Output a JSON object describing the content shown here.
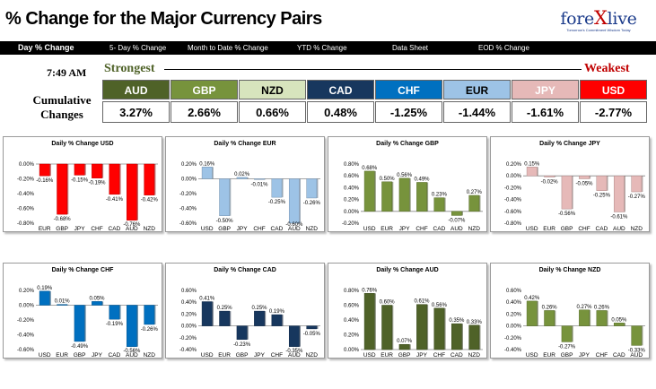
{
  "header": {
    "title": "% Change for the Major Currency Pairs",
    "logo": {
      "name_prefix": "fore",
      "name_x": "X",
      "name_suffix": "live",
      "tagline": "Tomorrow's Commitment Wisdom Today"
    }
  },
  "nav": {
    "tabs": [
      {
        "label": "Day % Change",
        "active": true
      },
      {
        "label": "5- Day % Change"
      },
      {
        "label": "Month to Date % Change"
      },
      {
        "label": "YTD % Change"
      },
      {
        "label": "Data Sheet"
      },
      {
        "label": "EOD % Change"
      }
    ]
  },
  "summary": {
    "time": "7:49 AM",
    "strongest_label": "Strongest",
    "weakest_label": "Weakest",
    "cumulative_label_1": "Cumulative",
    "cumulative_label_2": "Changes",
    "pairs": [
      {
        "code": "AUD",
        "value": "3.27%",
        "color": "#4f6228",
        "text_color": "#ffffff"
      },
      {
        "code": "GBP",
        "value": "2.66%",
        "color": "#77933c",
        "text_color": "#ffffff"
      },
      {
        "code": "NZD",
        "value": "0.66%",
        "color": "#d7e4bd",
        "text_color": "#000000"
      },
      {
        "code": "CAD",
        "value": "0.48%",
        "color": "#17375e",
        "text_color": "#ffffff"
      },
      {
        "code": "CHF",
        "value": "-1.25%",
        "color": "#0070c0",
        "text_color": "#ffffff"
      },
      {
        "code": "EUR",
        "value": "-1.44%",
        "color": "#9dc3e6",
        "text_color": "#000000"
      },
      {
        "code": "JPY",
        "value": "-1.61%",
        "color": "#e6b9b8",
        "text_color": "#ffffff"
      },
      {
        "code": "USD",
        "value": "-2.77%",
        "color": "#ff0000",
        "text_color": "#ffffff"
      }
    ]
  },
  "chart_data": [
    {
      "type": "bar",
      "title": "Daily % Change USD",
      "categories": [
        "EUR",
        "GBP",
        "JPY",
        "CHF",
        "CAD",
        "AUD",
        "NZD"
      ],
      "values": [
        -0.16,
        -0.68,
        -0.15,
        -0.19,
        -0.41,
        -0.76,
        -0.42
      ],
      "labels": [
        "-0.16%",
        "-0.68%",
        "-0.15%",
        "-0.19%",
        "-0.41%",
        "-0.76%",
        "-0.42%"
      ],
      "ylim": [
        -0.8,
        0.0
      ],
      "yticks": [
        0.0,
        -0.2,
        -0.4,
        -0.6,
        -0.8
      ],
      "ytick_labels": [
        "0.00%",
        "-0.20%",
        "-0.40%",
        "-0.60%",
        "-0.80%"
      ],
      "color": "#ff0000",
      "grid": false
    },
    {
      "type": "bar",
      "title": "Daily % Change EUR",
      "categories": [
        "USD",
        "GBP",
        "JPY",
        "CHF",
        "CAD",
        "AUD",
        "NZD"
      ],
      "values": [
        0.16,
        -0.5,
        0.02,
        -0.01,
        -0.25,
        -0.6,
        -0.26
      ],
      "labels": [
        "0.16%",
        "-0.50%",
        "0.02%",
        "-0.01%",
        "-0.25%",
        "-0.60%",
        "-0.26%"
      ],
      "ylim": [
        -0.6,
        0.2
      ],
      "yticks": [
        0.2,
        0.0,
        -0.2,
        -0.4,
        -0.6
      ],
      "ytick_labels": [
        "0.20%",
        "0.00%",
        "-0.20%",
        "-0.40%",
        "-0.60%"
      ],
      "color": "#9dc3e6",
      "grid": false
    },
    {
      "type": "bar",
      "title": "Daily % Change GBP",
      "categories": [
        "USD",
        "EUR",
        "JPY",
        "CHF",
        "CAD",
        "AUD",
        "NZD"
      ],
      "values": [
        0.68,
        0.5,
        0.56,
        0.49,
        0.23,
        -0.07,
        0.27
      ],
      "labels": [
        "0.68%",
        "0.50%",
        "0.56%",
        "0.49%",
        "0.23%",
        "-0.07%",
        "0.27%"
      ],
      "ylim": [
        -0.2,
        0.8
      ],
      "yticks": [
        0.8,
        0.6,
        0.4,
        0.2,
        0.0,
        -0.2
      ],
      "ytick_labels": [
        "0.80%",
        "0.60%",
        "0.40%",
        "0.20%",
        "0.00%",
        "-0.20%"
      ],
      "color": "#77933c",
      "grid": false
    },
    {
      "type": "bar",
      "title": "Daily % Change JPY",
      "categories": [
        "USD",
        "EUR",
        "GBP",
        "CHF",
        "CAD",
        "AUD",
        "NZD"
      ],
      "values": [
        0.15,
        -0.02,
        -0.56,
        -0.05,
        -0.25,
        -0.61,
        -0.27
      ],
      "labels": [
        "0.15%",
        "-0.02%",
        "-0.56%",
        "-0.05%",
        "-0.25%",
        "-0.61%",
        "-0.27%"
      ],
      "ylim": [
        -0.8,
        0.2
      ],
      "yticks": [
        0.2,
        0.0,
        -0.2,
        -0.4,
        -0.6,
        -0.8
      ],
      "ytick_labels": [
        "0.20%",
        "0.00%",
        "-0.20%",
        "-0.40%",
        "-0.60%",
        "-0.80%"
      ],
      "color": "#e6b9b8",
      "grid": false
    },
    {
      "type": "bar",
      "title": "Daily % Change CHF",
      "categories": [
        "USD",
        "EUR",
        "GBP",
        "JPY",
        "CAD",
        "AUD",
        "NZD"
      ],
      "values": [
        0.19,
        0.01,
        -0.49,
        0.05,
        -0.19,
        -0.56,
        -0.26
      ],
      "labels": [
        "0.19%",
        "0.01%",
        "-0.49%",
        "0.05%",
        "-0.19%",
        "-0.56%",
        "-0.26%"
      ],
      "ylim": [
        -0.6,
        0.2
      ],
      "yticks": [
        0.2,
        0.0,
        -0.2,
        -0.4,
        -0.6
      ],
      "ytick_labels": [
        "0.20%",
        "0.00%",
        "-0.20%",
        "-0.40%",
        "-0.60%"
      ],
      "color": "#0070c0",
      "grid": false
    },
    {
      "type": "bar",
      "title": "Daily % Change CAD",
      "categories": [
        "USD",
        "EUR",
        "GBP",
        "JPY",
        "CHF",
        "AUD",
        "NZD"
      ],
      "values": [
        0.41,
        0.25,
        -0.23,
        0.25,
        0.19,
        -0.35,
        -0.05
      ],
      "labels": [
        "0.41%",
        "0.25%",
        "-0.23%",
        "0.25%",
        "0.19%",
        "-0.35%",
        "-0.05%"
      ],
      "ylim": [
        -0.4,
        0.6
      ],
      "yticks": [
        0.6,
        0.4,
        0.2,
        0.0,
        -0.2,
        -0.4
      ],
      "ytick_labels": [
        "0.60%",
        "0.40%",
        "0.20%",
        "0.00%",
        "-0.20%",
        "-0.40%"
      ],
      "color": "#17375e",
      "grid": false
    },
    {
      "type": "bar",
      "title": "Daily % Change AUD",
      "categories": [
        "USD",
        "EUR",
        "GBP",
        "JPY",
        "CHF",
        "CAD",
        "NZD"
      ],
      "values": [
        0.76,
        0.6,
        0.07,
        0.61,
        0.56,
        0.35,
        0.33
      ],
      "labels": [
        "0.76%",
        "0.60%",
        "0.07%",
        "0.61%",
        "0.56%",
        "0.35%",
        "0.33%"
      ],
      "ylim": [
        0.0,
        0.8
      ],
      "yticks": [
        0.8,
        0.6,
        0.4,
        0.2,
        0.0
      ],
      "ytick_labels": [
        "0.80%",
        "0.60%",
        "0.40%",
        "0.20%",
        "0.00%"
      ],
      "color": "#4f6228",
      "grid": false
    },
    {
      "type": "bar",
      "title": "Daily % Change NZD",
      "categories": [
        "USD",
        "EUR",
        "GBP",
        "JPY",
        "CHF",
        "CAD",
        "AUD"
      ],
      "values": [
        0.42,
        0.26,
        -0.27,
        0.27,
        0.26,
        0.05,
        -0.33
      ],
      "labels": [
        "0.42%",
        "0.26%",
        "-0.27%",
        "0.27%",
        "0.26%",
        "0.05%",
        "-0.33%"
      ],
      "ylim": [
        -0.4,
        0.6
      ],
      "yticks": [
        0.6,
        0.4,
        0.2,
        0.0,
        -0.2,
        -0.4
      ],
      "ytick_labels": [
        "0.60%",
        "0.40%",
        "0.20%",
        "0.00%",
        "-0.20%",
        "-0.40%"
      ],
      "color": "#77933c",
      "grid": false
    }
  ]
}
